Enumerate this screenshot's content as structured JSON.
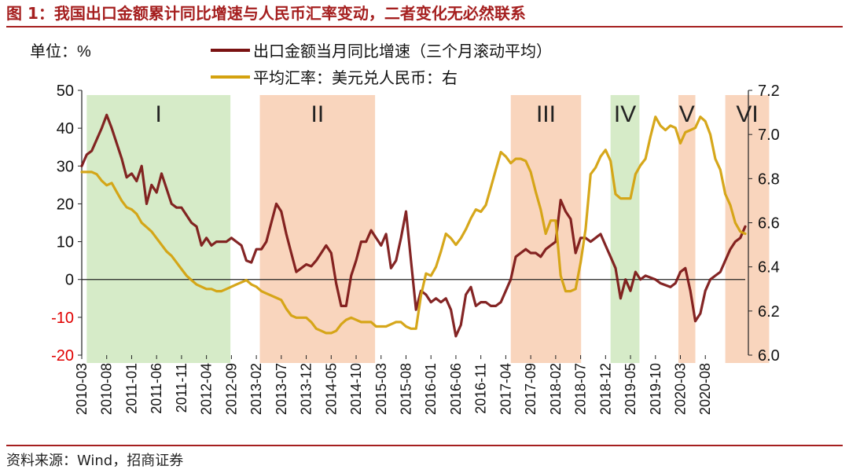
{
  "title": "图 1：我国出口金额累计同比增速与人民币汇率变动，二者变化无必然联系",
  "source": "资料来源：Wind，招商证券",
  "colors": {
    "brand": "#a51f1f",
    "export_line": "#7a1212",
    "fx_line": "#d4a20f",
    "green_band": "#d6ebc8",
    "orange_band": "#f9d5bd",
    "negative_tick": "#e00000"
  },
  "chart_data": {
    "type": "line",
    "unit_label": "单位：%",
    "xlabels": [
      "2010-03",
      "2010-08",
      "2011-01",
      "2011-06",
      "2011-11",
      "2012-04",
      "2012-09",
      "2013-02",
      "2013-07",
      "2013-12",
      "2014-05",
      "2014-10",
      "2015-03",
      "2015-08",
      "2016-01",
      "2016-06",
      "2016-11",
      "2017-04",
      "2017-09",
      "2018-02",
      "2018-07",
      "2018-12",
      "2019-05",
      "2019-10",
      "2020-03",
      "2020-08"
    ],
    "y_left": {
      "min": -20,
      "max": 50,
      "ticks": [
        -20,
        -10,
        0,
        10,
        20,
        30,
        40,
        50
      ]
    },
    "y_right": {
      "min": 6.0,
      "max": 7.2,
      "ticks": [
        6.0,
        6.2,
        6.4,
        6.6,
        6.8,
        7.0,
        7.2
      ]
    },
    "bands": [
      {
        "label": "I",
        "start": 1,
        "end": 29.8,
        "color": "green"
      },
      {
        "label": "II",
        "start": 35.7,
        "end": 58.8,
        "color": "orange"
      },
      {
        "label": "III",
        "start": 86,
        "end": 100.1,
        "color": "orange"
      },
      {
        "label": "IV",
        "start": 106,
        "end": 111.8,
        "color": "green"
      },
      {
        "label": "V",
        "start": 119.6,
        "end": 123,
        "color": "orange"
      },
      {
        "label": "VI",
        "start": 129,
        "end": 137.8,
        "color": "orange"
      }
    ],
    "series": [
      {
        "name": "出口金额当月同比增速（三个月滚动平均）",
        "axis": "left",
        "points": [
          [
            0,
            30
          ],
          [
            1,
            33
          ],
          [
            2,
            34
          ],
          [
            4,
            40
          ],
          [
            5,
            43.5
          ],
          [
            6,
            40
          ],
          [
            8,
            32
          ],
          [
            9,
            27
          ],
          [
            10,
            28
          ],
          [
            11,
            26
          ],
          [
            12,
            30
          ],
          [
            13,
            20
          ],
          [
            14,
            25
          ],
          [
            15,
            23
          ],
          [
            16,
            28
          ],
          [
            17,
            24
          ],
          [
            18,
            20
          ],
          [
            19,
            19
          ],
          [
            20,
            19
          ],
          [
            22,
            15
          ],
          [
            23,
            14
          ],
          [
            24,
            9
          ],
          [
            25,
            11
          ],
          [
            26,
            9
          ],
          [
            27,
            10
          ],
          [
            29,
            10
          ],
          [
            30,
            11
          ],
          [
            31,
            10
          ],
          [
            32,
            9
          ],
          [
            33,
            5
          ],
          [
            34,
            4.5
          ],
          [
            35,
            8
          ],
          [
            36,
            8
          ],
          [
            37,
            10
          ],
          [
            38,
            15
          ],
          [
            39,
            20
          ],
          [
            40,
            18
          ],
          [
            41,
            12
          ],
          [
            42,
            7
          ],
          [
            43,
            2
          ],
          [
            44,
            3
          ],
          [
            45,
            4
          ],
          [
            46,
            3.5
          ],
          [
            47,
            5
          ],
          [
            48,
            7
          ],
          [
            49,
            9
          ],
          [
            50,
            7
          ],
          [
            51,
            -1
          ],
          [
            52,
            -7
          ],
          [
            53,
            -7
          ],
          [
            54,
            1
          ],
          [
            55,
            5
          ],
          [
            56,
            10
          ],
          [
            57,
            10
          ],
          [
            58,
            13
          ],
          [
            59,
            11
          ],
          [
            60,
            9
          ],
          [
            61,
            12
          ],
          [
            62,
            3
          ],
          [
            63,
            5
          ],
          [
            64,
            11
          ],
          [
            65,
            18
          ],
          [
            66,
            5
          ],
          [
            67,
            -8
          ],
          [
            68,
            -3
          ],
          [
            69,
            -4
          ],
          [
            70,
            -6
          ],
          [
            71,
            -5
          ],
          [
            72,
            -6
          ],
          [
            73,
            -5
          ],
          [
            74,
            -8
          ],
          [
            75,
            -15
          ],
          [
            76,
            -12
          ],
          [
            77,
            -4
          ],
          [
            78,
            -2
          ],
          [
            79,
            -7
          ],
          [
            80,
            -6
          ],
          [
            81,
            -6
          ],
          [
            82,
            -7
          ],
          [
            83,
            -7
          ],
          [
            84,
            -6
          ],
          [
            85,
            -3
          ],
          [
            86,
            0
          ],
          [
            87,
            6
          ],
          [
            88,
            7
          ],
          [
            89,
            8
          ],
          [
            90,
            7
          ],
          [
            91,
            7
          ],
          [
            92,
            6
          ],
          [
            93,
            8
          ],
          [
            94,
            9
          ],
          [
            95,
            10
          ],
          [
            96,
            21
          ],
          [
            97,
            18
          ],
          [
            98,
            16
          ],
          [
            99,
            7
          ],
          [
            100,
            11
          ],
          [
            101,
            11
          ],
          [
            102,
            10
          ],
          [
            103,
            11
          ],
          [
            104,
            12
          ],
          [
            105,
            9
          ],
          [
            106,
            6
          ],
          [
            107,
            3
          ],
          [
            108,
            -5
          ],
          [
            109,
            0
          ],
          [
            110,
            -3
          ],
          [
            111,
            2
          ],
          [
            112,
            0
          ],
          [
            113,
            1
          ],
          [
            114,
            0.5
          ],
          [
            115,
            0
          ],
          [
            116,
            -1
          ],
          [
            117,
            -1.5
          ],
          [
            118,
            -2
          ],
          [
            119,
            -1
          ],
          [
            120,
            2
          ],
          [
            121,
            3
          ],
          [
            122,
            -3
          ],
          [
            123,
            -11
          ],
          [
            124,
            -9
          ],
          [
            125,
            -3
          ],
          [
            126,
            0
          ],
          [
            127,
            1
          ],
          [
            128,
            2
          ],
          [
            129,
            5
          ],
          [
            130,
            8
          ],
          [
            131,
            10
          ],
          [
            132,
            11
          ],
          [
            133,
            14
          ]
        ]
      },
      {
        "name": "平均汇率：美元兑人民币：右",
        "axis": "right",
        "points": [
          [
            0,
            6.83
          ],
          [
            1,
            6.83
          ],
          [
            2,
            6.83
          ],
          [
            3,
            6.82
          ],
          [
            4,
            6.79
          ],
          [
            5,
            6.77
          ],
          [
            6,
            6.78
          ],
          [
            7,
            6.74
          ],
          [
            8,
            6.7
          ],
          [
            9,
            6.67
          ],
          [
            10,
            6.66
          ],
          [
            11,
            6.64
          ],
          [
            12,
            6.6
          ],
          [
            13,
            6.58
          ],
          [
            14,
            6.56
          ],
          [
            15,
            6.53
          ],
          [
            16,
            6.5
          ],
          [
            17,
            6.47
          ],
          [
            18,
            6.45
          ],
          [
            19,
            6.42
          ],
          [
            20,
            6.39
          ],
          [
            21,
            6.36
          ],
          [
            22,
            6.34
          ],
          [
            23,
            6.32
          ],
          [
            24,
            6.31
          ],
          [
            25,
            6.3
          ],
          [
            26,
            6.3
          ],
          [
            27,
            6.29
          ],
          [
            28,
            6.29
          ],
          [
            29,
            6.3
          ],
          [
            30,
            6.31
          ],
          [
            31,
            6.32
          ],
          [
            32,
            6.33
          ],
          [
            33,
            6.34
          ],
          [
            34,
            6.32
          ],
          [
            35,
            6.31
          ],
          [
            36,
            6.29
          ],
          [
            37,
            6.28
          ],
          [
            38,
            6.27
          ],
          [
            39,
            6.26
          ],
          [
            40,
            6.25
          ],
          [
            41,
            6.21
          ],
          [
            42,
            6.18
          ],
          [
            43,
            6.17
          ],
          [
            44,
            6.17
          ],
          [
            45,
            6.17
          ],
          [
            46,
            6.15
          ],
          [
            47,
            6.12
          ],
          [
            48,
            6.11
          ],
          [
            49,
            6.1
          ],
          [
            50,
            6.1
          ],
          [
            51,
            6.11
          ],
          [
            52,
            6.14
          ],
          [
            53,
            6.16
          ],
          [
            54,
            6.17
          ],
          [
            55,
            6.16
          ],
          [
            56,
            6.15
          ],
          [
            57,
            6.15
          ],
          [
            58,
            6.15
          ],
          [
            59,
            6.13
          ],
          [
            60,
            6.13
          ],
          [
            61,
            6.13
          ],
          [
            62,
            6.14
          ],
          [
            63,
            6.15
          ],
          [
            64,
            6.15
          ],
          [
            65,
            6.13
          ],
          [
            66,
            6.12
          ],
          [
            67,
            6.12
          ],
          [
            68,
            6.27
          ],
          [
            69,
            6.37
          ],
          [
            70,
            6.36
          ],
          [
            71,
            6.4
          ],
          [
            72,
            6.47
          ],
          [
            73,
            6.55
          ],
          [
            74,
            6.53
          ],
          [
            75,
            6.5
          ],
          [
            76,
            6.53
          ],
          [
            77,
            6.57
          ],
          [
            78,
            6.62
          ],
          [
            79,
            6.66
          ],
          [
            80,
            6.65
          ],
          [
            81,
            6.68
          ],
          [
            82,
            6.76
          ],
          [
            83,
            6.84
          ],
          [
            84,
            6.92
          ],
          [
            85,
            6.9
          ],
          [
            86,
            6.87
          ],
          [
            87,
            6.89
          ],
          [
            88,
            6.89
          ],
          [
            89,
            6.88
          ],
          [
            90,
            6.83
          ],
          [
            91,
            6.74
          ],
          [
            92,
            6.66
          ],
          [
            93,
            6.55
          ],
          [
            94,
            6.61
          ],
          [
            95,
            6.61
          ],
          [
            96,
            6.36
          ],
          [
            97,
            6.29
          ],
          [
            98,
            6.29
          ],
          [
            99,
            6.3
          ],
          [
            100,
            6.42
          ],
          [
            101,
            6.57
          ],
          [
            102,
            6.82
          ],
          [
            103,
            6.85
          ],
          [
            104,
            6.9
          ],
          [
            105,
            6.93
          ],
          [
            106,
            6.88
          ],
          [
            107,
            6.73
          ],
          [
            108,
            6.71
          ],
          [
            109,
            6.71
          ],
          [
            110,
            6.71
          ],
          [
            111,
            6.82
          ],
          [
            112,
            6.86
          ],
          [
            113,
            6.89
          ],
          [
            114,
            6.99
          ],
          [
            115,
            7.08
          ],
          [
            116,
            7.04
          ],
          [
            117,
            7.02
          ],
          [
            118,
            7.04
          ],
          [
            119,
            7.03
          ],
          [
            120,
            6.96
          ],
          [
            121,
            7.01
          ],
          [
            122,
            7.02
          ],
          [
            123,
            7.03
          ],
          [
            124,
            7.08
          ],
          [
            125,
            7.06
          ],
          [
            126,
            7.0
          ],
          [
            127,
            6.89
          ],
          [
            128,
            6.84
          ],
          [
            129,
            6.73
          ],
          [
            130,
            6.68
          ],
          [
            131,
            6.6
          ],
          [
            132,
            6.56
          ],
          [
            133,
            6.55
          ]
        ]
      }
    ]
  }
}
